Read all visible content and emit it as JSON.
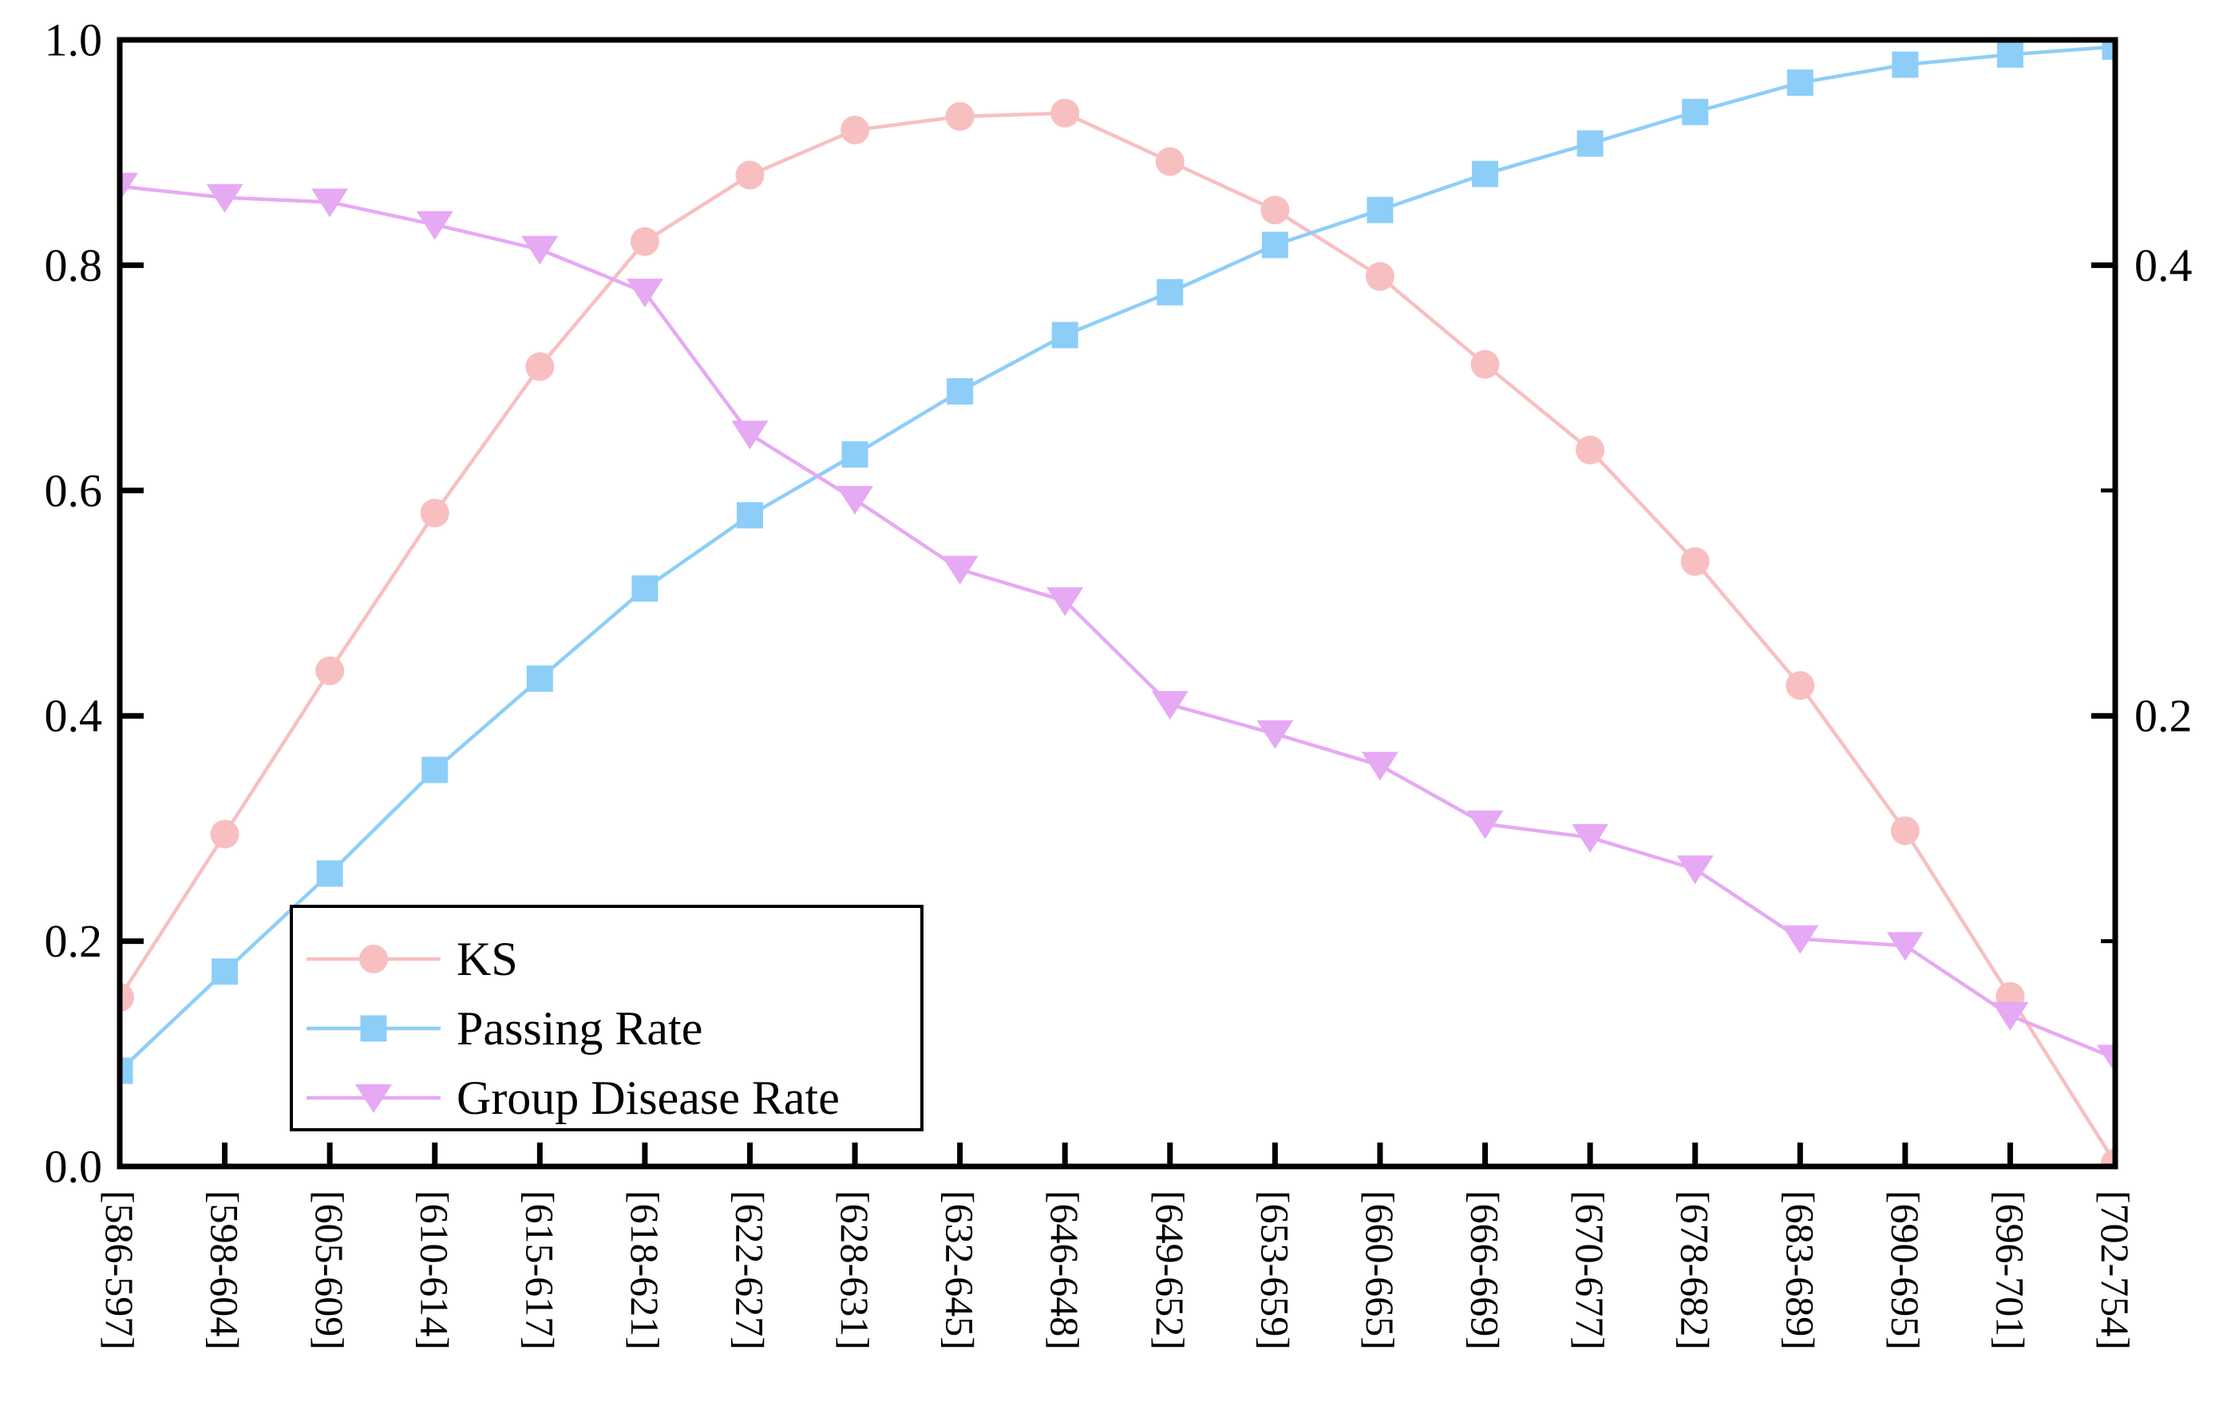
{
  "chart_data": {
    "type": "line",
    "title": "",
    "xlabel": "",
    "ylabel": "",
    "grid": false,
    "categories": [
      "[586-597]",
      "[598-604]",
      "[605-609]",
      "[610-614]",
      "[615-617]",
      "[618-621]",
      "[622-627]",
      "[628-631]",
      "[632-645]",
      "[646-648]",
      "[649-652]",
      "[653-659]",
      "[660-665]",
      "[666-669]",
      "[670-677]",
      "[678-682]",
      "[683-689]",
      "[690-695]",
      "[696-701]",
      "[702-754]"
    ],
    "series": [
      {
        "name": "KS",
        "axis": "left",
        "marker": "circle",
        "color": "#F8BFC1",
        "values": [
          0.15,
          0.295,
          0.44,
          0.58,
          0.71,
          0.821,
          0.88,
          0.92,
          0.932,
          0.935,
          0.892,
          0.849,
          0.79,
          0.712,
          0.636,
          0.537,
          0.427,
          0.298,
          0.151,
          0.003
        ]
      },
      {
        "name": "Passing Rate",
        "axis": "left",
        "marker": "square",
        "color": "#8DCEF8",
        "values": [
          0.085,
          0.173,
          0.26,
          0.352,
          0.433,
          0.513,
          0.578,
          0.632,
          0.688,
          0.738,
          0.776,
          0.818,
          0.849,
          0.881,
          0.908,
          0.936,
          0.962,
          0.978,
          0.987,
          0.994
        ]
      },
      {
        "name": "Group Disease Rate",
        "axis": "right",
        "marker": "triangle-down",
        "color": "#E6A9F4",
        "values": [
          0.435,
          0.43,
          0.428,
          0.418,
          0.407,
          0.388,
          0.325,
          0.296,
          0.265,
          0.251,
          0.205,
          0.192,
          0.178,
          0.152,
          0.146,
          0.132,
          0.101,
          0.098,
          0.067,
          0.048
        ]
      }
    ],
    "left_axis": {
      "range": [
        0.0,
        1.0
      ],
      "major_ticks": [
        0.0,
        0.2,
        0.4,
        0.6,
        0.8,
        1.0
      ],
      "tick_labels": [
        "0.0",
        "0.2",
        "0.4",
        "0.6",
        "0.8",
        "1.0"
      ]
    },
    "right_axis": {
      "range": [
        0.0,
        0.5
      ],
      "major_ticks": [
        0.2,
        0.4
      ],
      "major_tick_labels": [
        "0.2",
        "0.4"
      ],
      "minor_ticks": [
        0.1,
        0.3
      ]
    },
    "legend": {
      "position": "lower-left",
      "entries": [
        "KS",
        "Passing Rate",
        "Group Disease Rate"
      ]
    }
  }
}
